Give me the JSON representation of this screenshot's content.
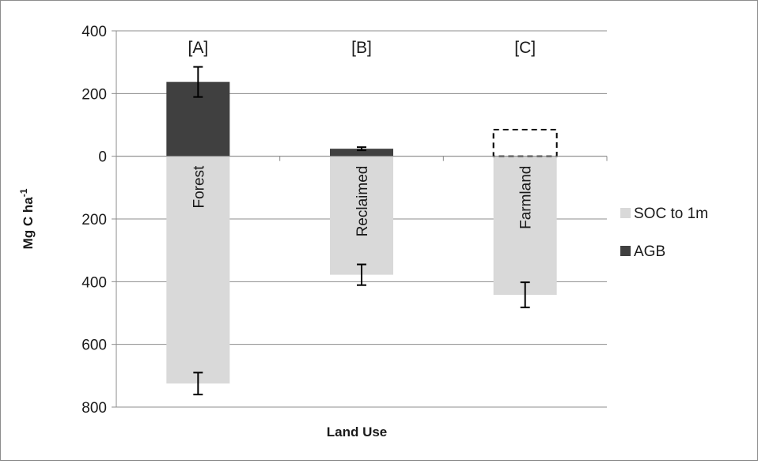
{
  "chart_data": {
    "type": "bar",
    "stacked": true,
    "xlabel": "Land Use",
    "ylabel_main": "Mg C ha",
    "ylabel_sup": "-1",
    "ylim": [
      -800,
      400
    ],
    "ytick_values": [
      400,
      200,
      0,
      -200,
      -400,
      -600,
      -800
    ],
    "ytick_labels": [
      "400",
      "200",
      "0",
      "200",
      "400",
      "600",
      "800"
    ],
    "grid": true,
    "legend_position": "right",
    "categories": [
      "Forest",
      "Reclaimed",
      "Farmland"
    ],
    "panel_labels": [
      "[A]",
      "[B]",
      "[C]"
    ],
    "series": [
      {
        "name": "SOC to 1m",
        "color": "#d9d9d9",
        "values": [
          -725,
          -378,
          -442
        ],
        "error": [
          35,
          33,
          40
        ]
      },
      {
        "name": "AGB",
        "color": "#404040",
        "values": [
          237,
          24,
          0
        ],
        "error": [
          48,
          5,
          0
        ]
      }
    ],
    "dashed_outline": {
      "category": "Farmland",
      "value": 85
    }
  }
}
